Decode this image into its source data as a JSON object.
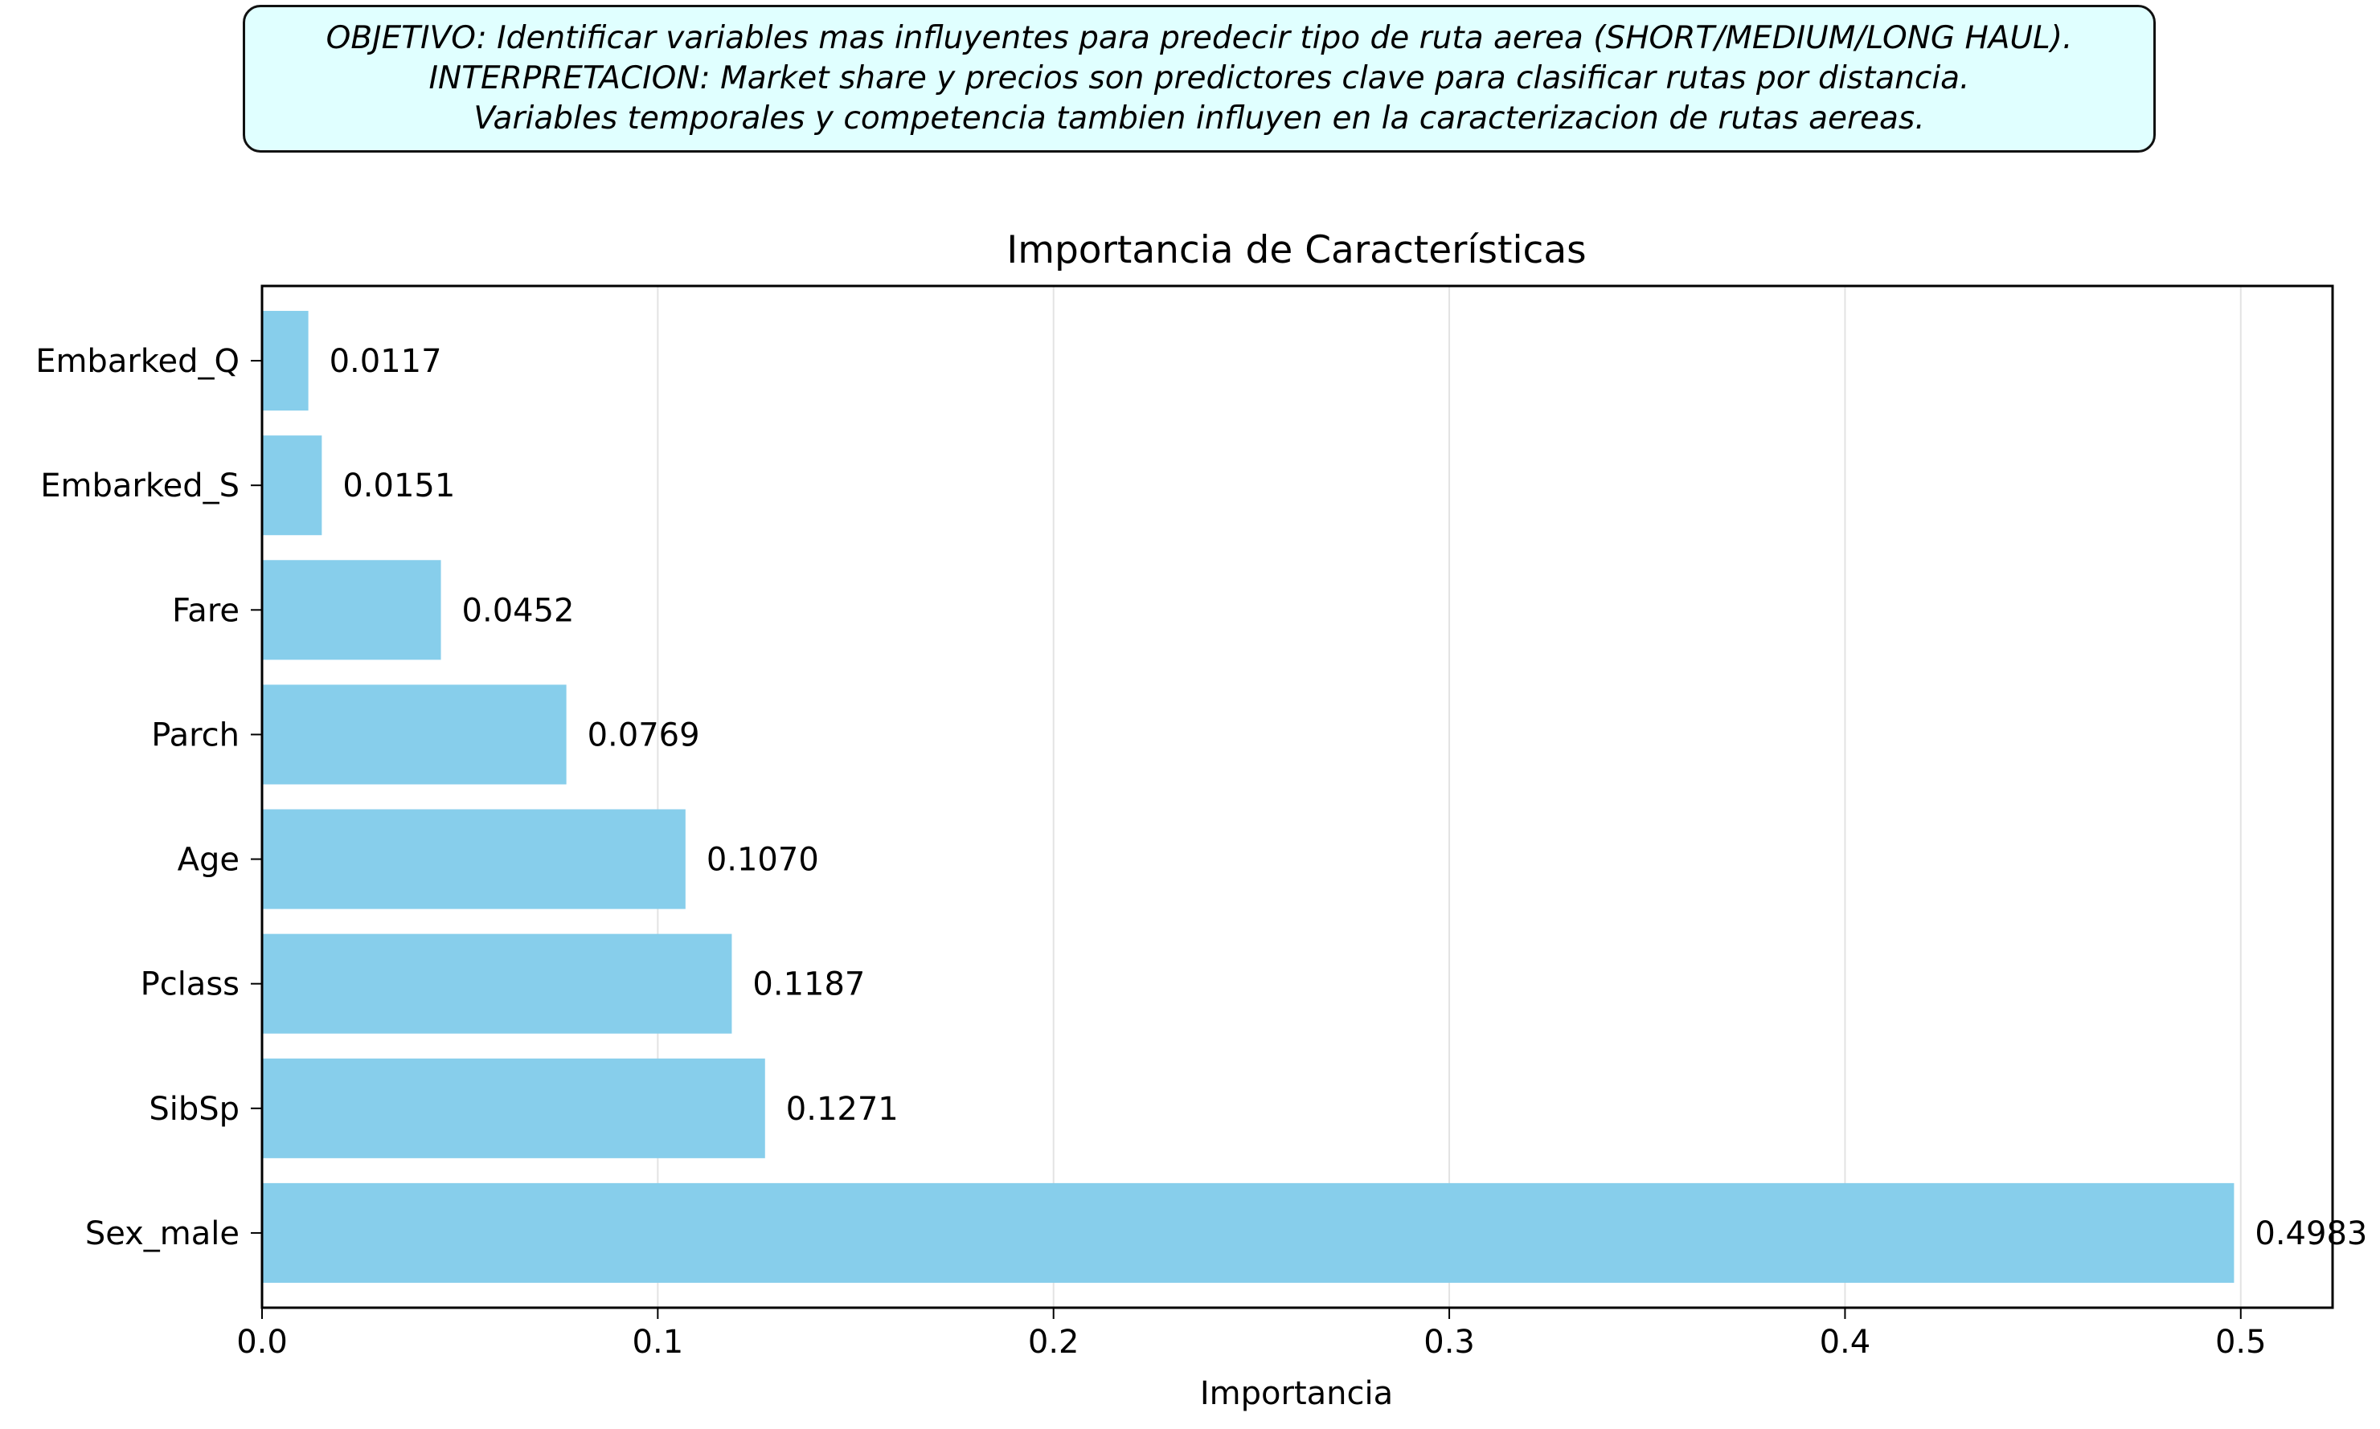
{
  "annotation": {
    "lines": [
      "OBJETIVO: Identificar variables mas influyentes para predecir tipo de ruta aerea (SHORT/MEDIUM/LONG HAUL).",
      "INTERPRETACION: Market share y precios son predictores clave para clasificar rutas por distancia.",
      "Variables temporales y competencia tambien influyen en la caracterizacion de rutas aereas."
    ]
  },
  "chart_data": {
    "type": "bar",
    "orientation": "horizontal",
    "title": "Importancia de Características",
    "xlabel": "Importancia",
    "ylabel": "",
    "categories": [
      "Embarked_Q",
      "Embarked_S",
      "Fare",
      "Parch",
      "Age",
      "Pclass",
      "SibSp",
      "Sex_male"
    ],
    "values": [
      0.0117,
      0.0151,
      0.0452,
      0.0769,
      0.107,
      0.1187,
      0.1271,
      0.4983
    ],
    "value_labels": [
      "0.0117",
      "0.0151",
      "0.0452",
      "0.0769",
      "0.1070",
      "0.1187",
      "0.1271",
      "0.4983"
    ],
    "xlim": [
      0,
      0.5232
    ],
    "xticks": [
      0.0,
      0.1,
      0.2,
      0.3,
      0.4,
      0.5
    ],
    "xtick_labels": [
      "0.0",
      "0.1",
      "0.2",
      "0.3",
      "0.4",
      "0.5"
    ],
    "grid": "x",
    "legend": "none",
    "bar_color": "#87ceeb"
  }
}
